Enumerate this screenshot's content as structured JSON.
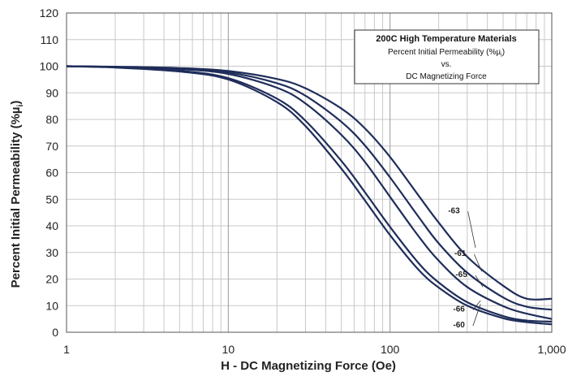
{
  "chart_data": {
    "type": "line",
    "title": "200C High Temperature Materials",
    "subtitle_lines": [
      "Percent Initial Permeability (%µ",
      "vs.",
      "DC Magnetizing Force"
    ],
    "subtitle_sub": "i",
    "subtitle_close": ")",
    "xlabel": "H - DC Magnetizing Force (Oe)",
    "ylabel_main": "Percent Initial Permeability (%µ",
    "ylabel_sub": "i",
    "ylabel_close": ")",
    "x_scale": "log",
    "xlim": [
      1,
      1000
    ],
    "ylim": [
      0,
      120
    ],
    "x_ticks": [
      1,
      10,
      100,
      1000
    ],
    "x_tick_labels": [
      "1",
      "10",
      "100",
      "1,000"
    ],
    "y_ticks": [
      0,
      10,
      20,
      30,
      40,
      50,
      60,
      70,
      80,
      90,
      100,
      110,
      120
    ],
    "y_tick_labels": [
      "0",
      "10",
      "20",
      "30",
      "40",
      "50",
      "60",
      "70",
      "80",
      "90",
      "100",
      "110",
      "120"
    ],
    "grid": true,
    "legend_position": "top-right",
    "line_color": "#1f2d5a",
    "series": [
      {
        "name": "-63",
        "x": [
          1,
          2,
          5,
          10,
          20,
          30,
          50,
          70,
          100,
          150,
          200,
          300,
          500,
          700,
          1000
        ],
        "y": [
          100,
          99.8,
          99.3,
          98.2,
          95.2,
          91.7,
          84.1,
          76.6,
          65.9,
          51.4,
          41.2,
          28.4,
          17.5,
          12.6,
          12.6
        ]
      },
      {
        "name": "-61",
        "x": [
          1,
          2,
          5,
          10,
          20,
          30,
          50,
          70,
          100,
          150,
          200,
          300,
          500,
          700,
          1000
        ],
        "y": [
          100,
          99.7,
          99.1,
          97.7,
          93.6,
          88.9,
          79.1,
          70.2,
          58.2,
          43.4,
          33.4,
          22.4,
          13.1,
          9.6,
          8.5
        ]
      },
      {
        "name": "-65",
        "x": [
          1,
          2,
          5,
          10,
          20,
          30,
          50,
          70,
          100,
          150,
          200,
          300,
          500,
          700,
          1000
        ],
        "y": [
          100,
          99.7,
          98.9,
          97.1,
          91.9,
          86.0,
          74.2,
          64.0,
          50.9,
          36.1,
          26.9,
          17.0,
          9.8,
          7.0,
          5.0
        ]
      },
      {
        "name": "-66",
        "x": [
          1,
          2,
          5,
          10,
          20,
          30,
          50,
          70,
          100,
          150,
          200,
          300,
          500,
          700,
          1000
        ],
        "y": [
          100,
          99.6,
          98.3,
          95.5,
          87.8,
          79.5,
          64.4,
          52.6,
          39.6,
          26.0,
          18.7,
          11.3,
          6.1,
          4.4,
          4.0
        ]
      },
      {
        "name": "-60",
        "x": [
          1,
          2,
          5,
          10,
          20,
          30,
          50,
          70,
          100,
          150,
          200,
          300,
          500,
          700,
          1000
        ],
        "y": [
          100,
          99.5,
          98.0,
          95.0,
          86.5,
          77.5,
          61.5,
          49.5,
          36.5,
          23.5,
          16.8,
          10.0,
          5.3,
          3.8,
          3.0
        ]
      }
    ],
    "series_label_anchor": [
      {
        "name": "-63",
        "x": 270,
        "y": 46
      },
      {
        "name": "-61",
        "x": 295,
        "y": 30
      },
      {
        "name": "-65",
        "x": 300,
        "y": 22
      },
      {
        "name": "-66",
        "x": 290,
        "y": 9
      },
      {
        "name": "-60",
        "x": 290,
        "y": 3
      }
    ]
  }
}
